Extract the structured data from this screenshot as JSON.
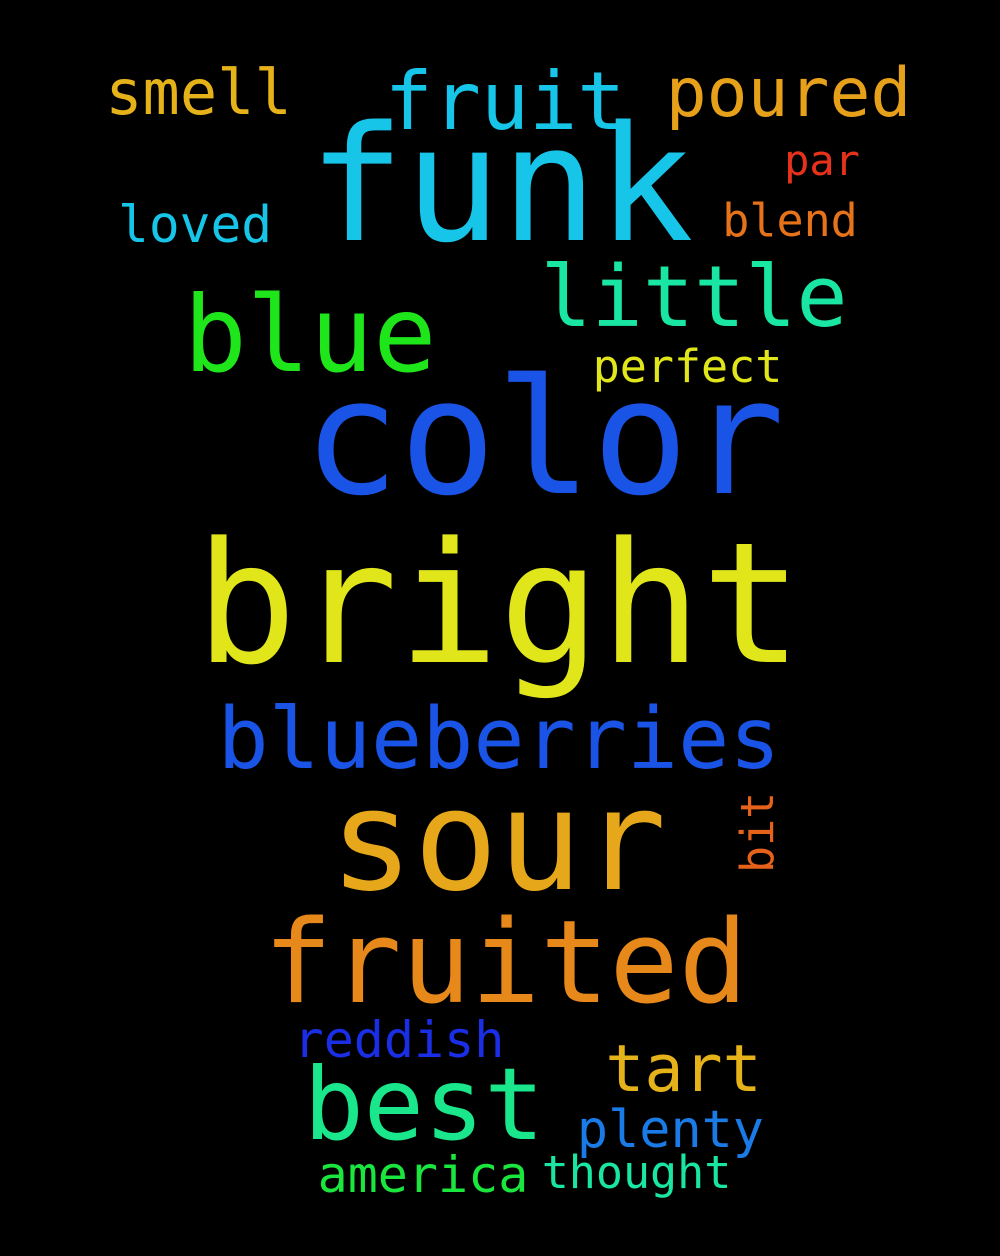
{
  "words": [
    {
      "text": "funk",
      "color": "#17c5e8"
    },
    {
      "text": "color",
      "color": "#1a54e6"
    },
    {
      "text": "bright",
      "color": "#e1e61a"
    },
    {
      "text": "sour",
      "color": "#e6a81a"
    },
    {
      "text": "fruited",
      "color": "#e6881a"
    },
    {
      "text": "blue",
      "color": "#1ee61a"
    },
    {
      "text": "best",
      "color": "#1ae68b"
    },
    {
      "text": "little",
      "color": "#1ae6a3"
    },
    {
      "text": "blueberries",
      "color": "#1a54e6"
    },
    {
      "text": "fruit",
      "color": "#17c5e8"
    },
    {
      "text": "poured",
      "color": "#e6a01a"
    },
    {
      "text": "smell",
      "color": "#e6b21a"
    },
    {
      "text": "tart",
      "color": "#e6b21a"
    },
    {
      "text": "par",
      "color": "#e6321a"
    },
    {
      "text": "blend",
      "color": "#e6721a"
    },
    {
      "text": "loved",
      "color": "#17c5e8"
    },
    {
      "text": "perfect",
      "color": "#e1e61a"
    },
    {
      "text": "bit",
      "color": "#e6621a"
    },
    {
      "text": "reddish",
      "color": "#1a2ee6"
    },
    {
      "text": "plenty",
      "color": "#1a7ae6"
    },
    {
      "text": "america",
      "color": "#1ae63e"
    },
    {
      "text": "thought",
      "color": "#1ae6a3"
    }
  ]
}
